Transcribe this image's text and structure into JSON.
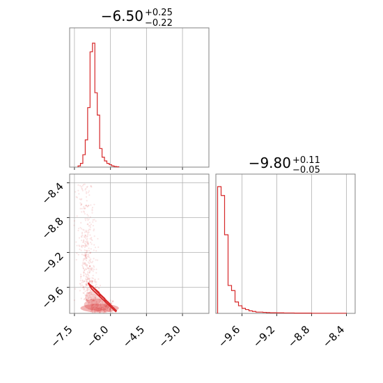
{
  "chart_data": [
    {
      "panel": "marginal-x",
      "type": "histogram",
      "title": {
        "main": "−6.50",
        "sup": "+0.25",
        "sub": "−0.22"
      },
      "xlim": [
        -7.7,
        -1.9
      ],
      "xticks": [
        -7.5,
        -6.0,
        -4.5,
        -3.0
      ],
      "xtick_labels": [
        "",
        "",
        "",
        ""
      ],
      "grid": true,
      "color": "#d62728",
      "bins": [
        {
          "x": -7.3,
          "value": 1
        },
        {
          "x": -7.2,
          "value": 3
        },
        {
          "x": -7.1,
          "value": 10
        },
        {
          "x": -7.0,
          "value": 22
        },
        {
          "x": -6.9,
          "value": 48
        },
        {
          "x": -6.8,
          "value": 93
        },
        {
          "x": -6.7,
          "value": 100
        },
        {
          "x": -6.6,
          "value": 60
        },
        {
          "x": -6.5,
          "value": 42
        },
        {
          "x": -6.4,
          "value": 15
        },
        {
          "x": -6.3,
          "value": 8
        },
        {
          "x": -6.2,
          "value": 5
        },
        {
          "x": -6.1,
          "value": 3
        },
        {
          "x": -6.0,
          "value": 2
        },
        {
          "x": -5.9,
          "value": 1
        },
        {
          "x": -5.8,
          "value": 0.5
        },
        {
          "x": -5.7,
          "value": 0.3
        }
      ]
    },
    {
      "panel": "joint",
      "type": "scatter",
      "xlim": [
        -7.7,
        -1.9
      ],
      "ylim": [
        -9.9,
        -8.3
      ],
      "xticks": [
        -7.5,
        -6.0,
        -4.5,
        -3.0
      ],
      "xtick_labels": [
        "−7.5",
        "−6.0",
        "−4.5",
        "−3.0"
      ],
      "yticks": [
        -8.4,
        -8.8,
        -9.2,
        -9.6
      ],
      "ytick_labels": [
        "−8.4",
        "−8.8",
        "−9.2",
        "−9.6"
      ],
      "grid": true,
      "color": "#d62728",
      "contour_levels": 4
    },
    {
      "panel": "marginal-y",
      "type": "histogram",
      "title": {
        "main": "−9.80",
        "sup": "+0.11",
        "sub": "−0.05"
      },
      "xlim": [
        -9.9,
        -8.3
      ],
      "xticks": [
        -9.6,
        -9.2,
        -8.8,
        -8.4
      ],
      "xtick_labels": [
        "−9.6",
        "−9.2",
        "−8.8",
        "−8.4"
      ],
      "grid": true,
      "color": "#d62728",
      "bins": [
        {
          "x": -9.86,
          "value": 100
        },
        {
          "x": -9.82,
          "value": 93
        },
        {
          "x": -9.78,
          "value": 62
        },
        {
          "x": -9.74,
          "value": 22
        },
        {
          "x": -9.7,
          "value": 18
        },
        {
          "x": -9.66,
          "value": 9
        },
        {
          "x": -9.62,
          "value": 6
        },
        {
          "x": -9.58,
          "value": 4
        },
        {
          "x": -9.54,
          "value": 3
        },
        {
          "x": -9.5,
          "value": 2
        },
        {
          "x": -9.46,
          "value": 1.5
        },
        {
          "x": -9.42,
          "value": 1
        },
        {
          "x": -9.38,
          "value": 1
        },
        {
          "x": -9.34,
          "value": 0.8
        },
        {
          "x": -9.3,
          "value": 0.6
        },
        {
          "x": -9.26,
          "value": 0.5
        },
        {
          "x": -9.22,
          "value": 0.5
        },
        {
          "x": -9.18,
          "value": 0.4
        },
        {
          "x": -9.14,
          "value": 0.4
        },
        {
          "x": -9.1,
          "value": 0.3
        },
        {
          "x": -9.06,
          "value": 0.3
        },
        {
          "x": -9.02,
          "value": 0.3
        },
        {
          "x": -8.98,
          "value": 0.2
        },
        {
          "x": -8.94,
          "value": 0.2
        },
        {
          "x": -8.9,
          "value": 0.2
        },
        {
          "x": -8.86,
          "value": 0.2
        },
        {
          "x": -8.82,
          "value": 0.2
        },
        {
          "x": -8.78,
          "value": 0.1
        },
        {
          "x": -8.74,
          "value": 0.1
        },
        {
          "x": -8.7,
          "value": 0.1
        },
        {
          "x": -8.66,
          "value": 0.1
        },
        {
          "x": -8.62,
          "value": 0.1
        },
        {
          "x": -8.58,
          "value": 0.1
        },
        {
          "x": -8.54,
          "value": 0.1
        },
        {
          "x": -8.5,
          "value": 0.1
        },
        {
          "x": -8.46,
          "value": 0.1
        },
        {
          "x": -8.42,
          "value": 0.1
        }
      ]
    }
  ]
}
